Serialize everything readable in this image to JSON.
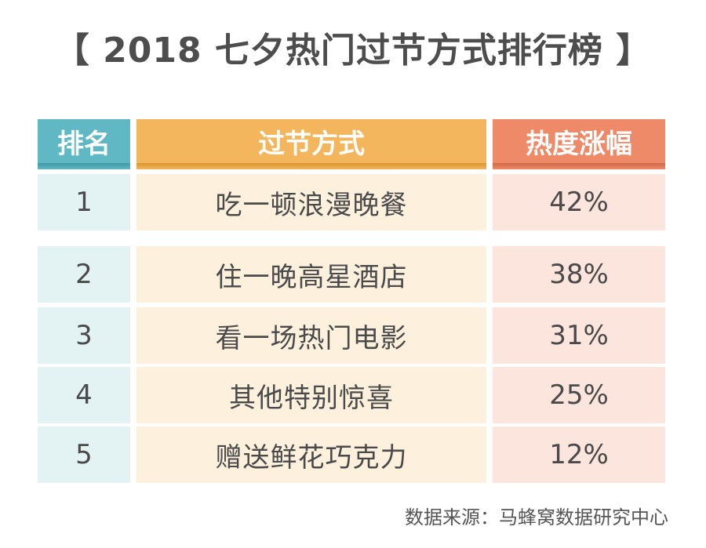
{
  "title": "【 2018 七夕热门过节方式排行榜 】",
  "table": {
    "headers": {
      "rank": "排名",
      "mode": "过节方式",
      "heat": "热度涨幅"
    },
    "rows": [
      {
        "rank": "1",
        "mode": "吃一顿浪漫晚餐",
        "heat": "42%"
      },
      {
        "rank": "2",
        "mode": "住一晚高星酒店",
        "heat": "38%"
      },
      {
        "rank": "3",
        "mode": "看一场热门电影",
        "heat": "31%"
      },
      {
        "rank": "4",
        "mode": "其他特别惊喜",
        "heat": "25%"
      },
      {
        "rank": "5",
        "mode": "赠送鲜花巧克力",
        "heat": "12%"
      }
    ]
  },
  "source": "数据来源：马蜂窝数据研究中心"
}
